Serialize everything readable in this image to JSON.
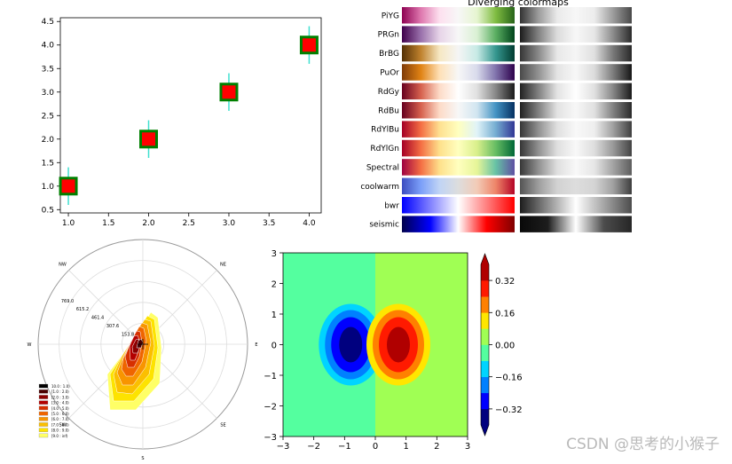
{
  "chart_data": [
    {
      "type": "scatter",
      "title": "",
      "xlabel": "",
      "ylabel": "",
      "x": [
        1,
        2,
        3,
        4
      ],
      "y": [
        1,
        2,
        3,
        4
      ],
      "yerr": [
        0.4,
        0.4,
        0.4,
        0.4
      ],
      "xlim": [
        0.9,
        4.15
      ],
      "ylim": [
        0.43,
        4.58
      ],
      "xticks": [
        "1.0",
        "1.5",
        "2.0",
        "2.5",
        "3.0",
        "3.5",
        "4.0"
      ],
      "yticks": [
        "0.5",
        "1.0",
        "1.5",
        "2.0",
        "2.5",
        "3.0",
        "3.5",
        "4.0",
        "4.5"
      ],
      "marker_face": "#ff0000",
      "marker_edge": "#008000",
      "errorbar_color": "#40e0d0"
    },
    {
      "type": "heatmap",
      "title": "Diverging colormaps",
      "colormaps": [
        {
          "name": "PiYG",
          "colors": [
            "#8e0152",
            "#de77ae",
            "#fde0ef",
            "#f7f7f7",
            "#e6f5d0",
            "#7fbc41",
            "#276419"
          ]
        },
        {
          "name": "PRGn",
          "colors": [
            "#40004b",
            "#9970ab",
            "#e7d4e8",
            "#f7f7f7",
            "#d9f0d3",
            "#5aae61",
            "#00441b"
          ]
        },
        {
          "name": "BrBG",
          "colors": [
            "#543005",
            "#bf812d",
            "#f6e8c3",
            "#f5f5f5",
            "#c7eae5",
            "#35978f",
            "#003c30"
          ]
        },
        {
          "name": "PuOr",
          "colors": [
            "#7f3b08",
            "#e08214",
            "#fee0b6",
            "#f7f7f7",
            "#d8daeb",
            "#8073ac",
            "#2d004b"
          ]
        },
        {
          "name": "RdGy",
          "colors": [
            "#67001f",
            "#d6604d",
            "#fddbc7",
            "#ffffff",
            "#e0e0e0",
            "#878787",
            "#1a1a1a"
          ]
        },
        {
          "name": "RdBu",
          "colors": [
            "#67001f",
            "#d6604d",
            "#fddbc7",
            "#f7f7f7",
            "#d1e5f0",
            "#4393c3",
            "#053061"
          ]
        },
        {
          "name": "RdYlBu",
          "colors": [
            "#a50026",
            "#f46d43",
            "#fee090",
            "#ffffbf",
            "#e0f3f8",
            "#74add1",
            "#313695"
          ]
        },
        {
          "name": "RdYlGn",
          "colors": [
            "#a50026",
            "#f46d43",
            "#fee08b",
            "#ffffbf",
            "#d9ef8b",
            "#66bd63",
            "#006837"
          ]
        },
        {
          "name": "Spectral",
          "colors": [
            "#9e0142",
            "#f46d43",
            "#fee08b",
            "#ffffbf",
            "#e6f598",
            "#66c2a5",
            "#5e4fa2"
          ]
        },
        {
          "name": "coolwarm",
          "colors": [
            "#3b4cc0",
            "#7b9ff9",
            "#c0d4f5",
            "#dddddd",
            "#f2cbb7",
            "#ee8468",
            "#b40426"
          ]
        },
        {
          "name": "bwr",
          "colors": [
            "#0000ff",
            "#8080ff",
            "#ffffff",
            "#ff8080",
            "#ff0000"
          ]
        },
        {
          "name": "seismic",
          "colors": [
            "#00004c",
            "#0000ff",
            "#ffffff",
            "#ff0000",
            "#800000"
          ]
        }
      ]
    },
    {
      "type": "area",
      "title": "",
      "directions": [
        "N",
        "NE",
        "E",
        "SE",
        "S",
        "SW",
        "W",
        "NW"
      ],
      "radial_labels": [
        "153.8",
        "307.6",
        "461.4",
        "615.2",
        "769.0"
      ],
      "legend": [
        "10.0 : 1.0)",
        "[1.0 : 2.0)",
        "[2.0 : 3.0)",
        "[3.0 : 4.0)",
        "[4.0 : 5.0)",
        "[5.0 : 6.0)",
        "[6.0 : 7.0)",
        "[7.0 : 8.0)",
        "[8.0 : 9.0)",
        "[9.0 : inf)"
      ],
      "legend_colors": [
        "#000000",
        "#4a0000",
        "#8b0000",
        "#b30000",
        "#d73000",
        "#ef6500",
        "#f89500",
        "#fbbf00",
        "#fde300",
        "#ffff66"
      ],
      "legend_placement": "lower-left"
    },
    {
      "type": "heatmap",
      "xlim": [
        -3,
        3
      ],
      "ylim": [
        -3,
        3
      ],
      "xticks": [
        "−3",
        "−2",
        "−1",
        "0",
        "1",
        "2",
        "3"
      ],
      "yticks": [
        "−3",
        "−2",
        "−1",
        "0",
        "1",
        "2",
        "3"
      ],
      "colorbar_ticks": [
        "−0.32",
        "−0.16",
        "0.00",
        "0.16",
        "0.32"
      ],
      "colorbar_colors": [
        "#00007f",
        "#0000ff",
        "#0080ff",
        "#00d4ff",
        "#54ff9f",
        "#a0ff54",
        "#ffe600",
        "#ff8000",
        "#ff1a00",
        "#b00000"
      ]
    }
  ],
  "watermark": "CSDN @思考的小猴子"
}
